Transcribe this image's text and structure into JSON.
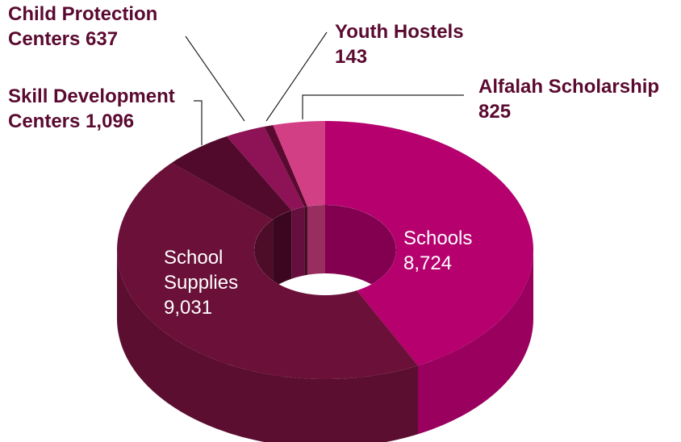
{
  "chart_data": {
    "type": "donut3d",
    "categories": [
      "Schools",
      "School Supplies",
      "Skill Development Centers",
      "Child Protection Centers",
      "Youth Hostels",
      "Alfalah Scholarship"
    ],
    "values": [
      8724,
      9031,
      1096,
      637,
      143,
      825
    ],
    "value_labels": [
      "8,724",
      "9,031",
      "1,096",
      "637",
      "143",
      "825"
    ],
    "colors": [
      "#b5006e",
      "#6b1038",
      "#520a2c",
      "#8e1356",
      "#5a0a30",
      "#d33f85"
    ]
  }
}
